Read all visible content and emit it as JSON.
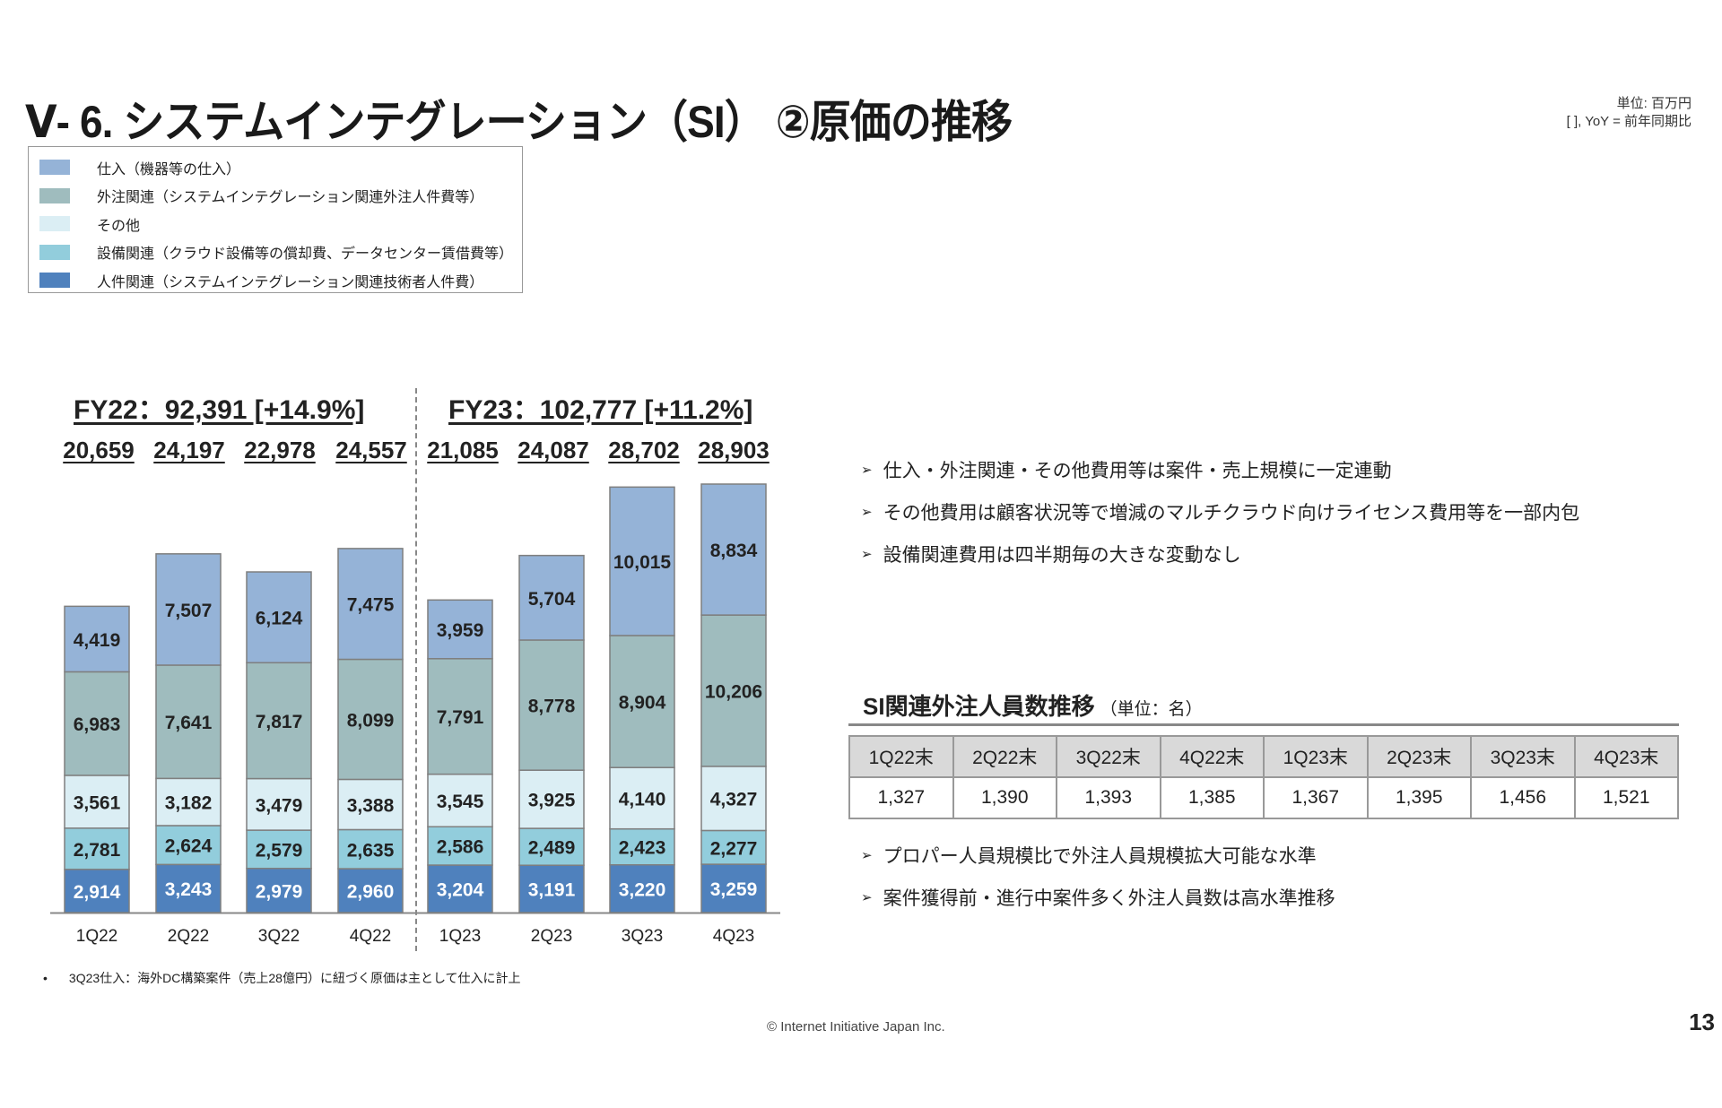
{
  "header": {
    "title": "Ⅴ- 6.  システムインテグレーション（SI） ②原価の推移",
    "unit_line1": "単位: 百万円",
    "unit_line2": "[ ], YoY = 前年同期比"
  },
  "colors": {
    "purchase": "#95b3d7",
    "outsourcing": "#9fbcbe",
    "other": "#dbeef4",
    "facility": "#92cddc",
    "personnel": "#4f81bd",
    "bar_border": "#7f7f7f"
  },
  "chart_data": {
    "type": "bar",
    "stacked": true,
    "title": "",
    "xlabel": "",
    "ylabel": "",
    "unit": "百万円",
    "categories": [
      "1Q22",
      "2Q22",
      "3Q22",
      "4Q22",
      "1Q23",
      "2Q23",
      "3Q23",
      "4Q23"
    ],
    "series": [
      {
        "key": "personnel",
        "name": "人件関連（システムインテグレーション関連技術者人件費）",
        "values": [
          2914,
          3243,
          2979,
          2960,
          3204,
          3191,
          3220,
          3259
        ],
        "labels": [
          "2,914",
          "3,243",
          "2,979",
          "2,960",
          "3,204",
          "3,191",
          "3,220",
          "3,259"
        ]
      },
      {
        "key": "facility",
        "name": "設備関連（クラウド設備等の償却費、データセンター賃借費等）",
        "values": [
          2781,
          2624,
          2579,
          2635,
          2586,
          2489,
          2423,
          2277
        ],
        "labels": [
          "2,781",
          "2,624",
          "2,579",
          "2,635",
          "2,586",
          "2,489",
          "2,423",
          "2,277"
        ]
      },
      {
        "key": "other",
        "name": "その他",
        "values": [
          3561,
          3182,
          3479,
          3388,
          3545,
          3925,
          4140,
          4327
        ],
        "labels": [
          "3,561",
          "3,182",
          "3,479",
          "3,388",
          "3,545",
          "3,925",
          "4,140",
          "4,327"
        ]
      },
      {
        "key": "outsourcing",
        "name": "外注関連（システムインテグレーション関連外注人件費等）",
        "values": [
          6983,
          7641,
          7817,
          8099,
          7791,
          8778,
          8904,
          10206
        ],
        "labels": [
          "6,983",
          "7,641",
          "7,817",
          "8,099",
          "7,791",
          "8,778",
          "8,904",
          "10,206"
        ]
      },
      {
        "key": "purchase",
        "name": "仕入（機器等の仕入）",
        "values": [
          4419,
          7507,
          6124,
          7475,
          3959,
          5704,
          10015,
          8834
        ],
        "labels": [
          "4,419",
          "7,507",
          "6,124",
          "7,475",
          "3,959",
          "5,704",
          "10,015",
          "8,834"
        ]
      }
    ],
    "totals": [
      20659,
      24197,
      22978,
      24557,
      21085,
      24087,
      28702,
      28903
    ],
    "total_labels": [
      "20,659",
      "24,197",
      "22,978",
      "24,557",
      "21,085",
      "24,087",
      "28,702",
      "28,903"
    ],
    "fiscal_years": [
      {
        "label": "FY22：92,391 [+14.9%]"
      },
      {
        "label": "FY23：102,777 [+11.2%]"
      }
    ],
    "ylim": [
      0,
      29000
    ],
    "grid": false,
    "legend_position": "top-left"
  },
  "legend": {
    "items": [
      {
        "key": "purchase",
        "label": "仕入（機器等の仕入）"
      },
      {
        "key": "outsourcing",
        "label": "外注関連（システムインテグレーション関連外注人件費等）"
      },
      {
        "key": "other",
        "label": "その他"
      },
      {
        "key": "facility",
        "label": "設備関連（クラウド設備等の償却費、データセンター賃借費等）"
      },
      {
        "key": "personnel",
        "label": "人件関連（システムインテグレーション関連技術者人件費）"
      }
    ]
  },
  "footnote": "3Q23仕入：海外DC構築案件（売上28億円）に紐づく原価は主として仕入に計上",
  "commentary": {
    "bullets_top": [
      "仕入・外注関連・その他費用等は案件・売上規模に一定連動",
      "その他費用は顧客状況等で増減のマルチクラウド向けライセンス費用等を一部内包",
      "設備関連費用は四半期毎の大きな変動なし"
    ],
    "bullets_bottom": [
      "プロパー人員規模比で外注人員規模拡大可能な水準",
      "案件獲得前・進行中案件多く外注人員数は高水準推移"
    ]
  },
  "si_staff": {
    "title": "SI関連外注人員数推移",
    "unit": "（単位：名）",
    "headers": [
      "1Q22末",
      "2Q22末",
      "3Q22末",
      "4Q22末",
      "1Q23末",
      "2Q23末",
      "3Q23末",
      "4Q23末"
    ],
    "values": [
      "1,327",
      "1,390",
      "1,393",
      "1,385",
      "1,367",
      "1,395",
      "1,456",
      "1,521"
    ]
  },
  "footer": {
    "copyright": "© Internet Initiative Japan Inc.",
    "page_number": "13"
  }
}
